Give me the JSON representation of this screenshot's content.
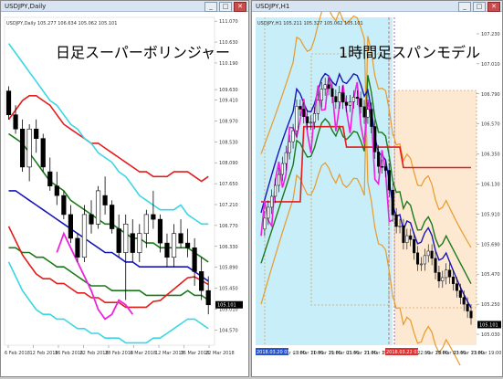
{
  "left_window": {
    "title": "USDJPY,Daily",
    "ohlc_text": "USDJPY,Daily 105.277 106.634 105.062 105.101",
    "caption": "日足スーパーボリンジャー"
  },
  "right_window": {
    "title": "USDJPY,H1",
    "ohlc_text": "USDJPY,H1 105.211 105.327 105.062 105.101",
    "caption": "1時間足スパンモデル"
  },
  "window_buttons": {
    "minimize": "_",
    "maximize": "□",
    "close": "✕"
  },
  "colors": {
    "up": "#ffffff",
    "down": "#000000",
    "price_tag": "#000000",
    "red_tag": "#e03030"
  },
  "chart_data": [
    {
      "type": "candlestick",
      "title": "日足スーパーボリンジャー",
      "ylim": [
        104.25,
        111.15
      ],
      "y_ticks": [
        "111.070",
        "110.630",
        "110.190",
        "109.630",
        "109.410",
        "108.970",
        "108.530",
        "108.090",
        "107.650",
        "107.210",
        "106.770",
        "106.330",
        "105.890",
        "105.450",
        "105.010",
        "104.570"
      ],
      "price_tag": "105.101",
      "x_tick_labels": [
        "6 Feb 2018",
        "12 Feb 2018",
        "16 Feb 2018",
        "22 Feb 2018",
        "28 Feb 2018",
        "6 Mar 2018",
        "12 Mar 2018",
        "16 Mar 2018",
        "22 Mar 2018"
      ],
      "candles": [
        [
          109.6,
          109.7,
          109.0,
          109.1
        ],
        [
          109.1,
          109.3,
          108.7,
          108.8
        ],
        [
          108.8,
          109.0,
          107.9,
          108.0
        ],
        [
          108.0,
          108.9,
          107.7,
          108.8
        ],
        [
          108.8,
          109.0,
          108.3,
          108.6
        ],
        [
          108.6,
          108.7,
          107.9,
          108.0
        ],
        [
          107.9,
          108.2,
          107.5,
          107.6
        ],
        [
          107.6,
          107.9,
          107.2,
          107.4
        ],
        [
          107.4,
          107.5,
          106.9,
          107.0
        ],
        [
          107.0,
          107.2,
          106.4,
          106.5
        ],
        [
          106.5,
          106.6,
          106.0,
          106.1
        ],
        [
          106.1,
          107.2,
          106.0,
          107.0
        ],
        [
          107.0,
          107.3,
          106.6,
          106.8
        ],
        [
          106.8,
          107.6,
          106.7,
          107.5
        ],
        [
          107.4,
          107.8,
          107.0,
          107.2
        ],
        [
          107.2,
          107.3,
          106.6,
          106.7
        ],
        [
          106.7,
          107.0,
          106.1,
          106.2
        ],
        [
          106.2,
          107.0,
          105.2,
          106.8
        ],
        [
          106.6,
          106.9,
          106.0,
          106.2
        ],
        [
          106.2,
          106.8,
          106.0,
          106.6
        ],
        [
          106.6,
          107.1,
          106.3,
          107.0
        ],
        [
          107.0,
          107.5,
          106.7,
          106.9
        ],
        [
          106.9,
          107.0,
          106.2,
          106.4
        ],
        [
          106.4,
          106.6,
          105.9,
          106.1
        ],
        [
          106.1,
          106.8,
          105.9,
          106.6
        ],
        [
          106.6,
          106.9,
          106.3,
          106.4
        ],
        [
          106.4,
          106.7,
          106.1,
          106.3
        ],
        [
          106.3,
          106.5,
          105.5,
          105.8
        ],
        [
          105.8,
          106.1,
          105.2,
          105.4
        ],
        [
          105.4,
          105.7,
          104.9,
          105.1
        ]
      ],
      "bands": {
        "sigma3_upper": [
          109.0,
          109.2,
          109.4,
          109.5,
          109.5,
          109.4,
          109.3,
          109.1,
          108.9,
          108.8,
          108.7,
          108.6,
          108.5,
          108.5,
          108.4,
          108.3,
          108.2,
          108.1,
          108.0,
          107.9,
          107.9,
          107.8,
          107.8,
          107.8,
          107.9,
          107.9,
          107.9,
          107.8,
          107.7,
          107.8
        ],
        "sigma2_upper": [
          110.6,
          110.4,
          110.2,
          110.0,
          109.8,
          109.6,
          109.4,
          109.3,
          109.1,
          108.9,
          108.8,
          108.6,
          108.5,
          108.3,
          108.2,
          108.1,
          107.9,
          107.8,
          107.6,
          107.4,
          107.3,
          107.2,
          107.1,
          107.1,
          107.1,
          107.2,
          107.0,
          106.9,
          106.8,
          106.8
        ],
        "sigma1_upper": [
          108.7,
          108.6,
          108.5,
          108.3,
          108.1,
          107.9,
          107.7,
          107.6,
          107.5,
          107.3,
          107.2,
          107.1,
          107.0,
          106.9,
          106.8,
          106.8,
          106.7,
          106.6,
          106.5,
          106.5,
          106.4,
          106.4,
          106.3,
          106.3,
          106.3,
          106.3,
          106.3,
          106.2,
          106.1,
          106.0
        ],
        "mid": [
          107.5,
          107.5,
          107.4,
          107.3,
          107.2,
          107.1,
          107.0,
          106.9,
          106.8,
          106.7,
          106.6,
          106.5,
          106.4,
          106.3,
          106.2,
          106.2,
          106.1,
          106.0,
          106.0,
          105.9,
          105.9,
          105.9,
          105.9,
          105.9,
          105.9,
          105.9,
          105.9,
          105.8,
          105.7,
          105.6
        ],
        "sigma1_lower": [
          106.3,
          106.3,
          106.2,
          106.2,
          106.1,
          106.1,
          106.0,
          105.9,
          105.9,
          105.8,
          105.7,
          105.6,
          105.5,
          105.5,
          105.5,
          105.4,
          105.4,
          105.4,
          105.4,
          105.4,
          105.3,
          105.3,
          105.3,
          105.3,
          105.3,
          105.3,
          105.4,
          105.3,
          105.3,
          105.2
        ],
        "sigma2_lower": [
          106.0,
          105.7,
          105.4,
          105.2,
          105.0,
          104.9,
          104.9,
          104.8,
          104.8,
          104.7,
          104.6,
          104.6,
          104.5,
          104.5,
          104.4,
          104.4,
          104.4,
          104.3,
          104.3,
          104.3,
          104.3,
          104.4,
          104.4,
          104.5,
          104.6,
          104.7,
          104.8,
          104.8,
          104.7,
          104.6
        ],
        "lagging": [
          null,
          null,
          null,
          null,
          null,
          null,
          null,
          106.2,
          106.6,
          106.3,
          106.0,
          105.7,
          105.4,
          105.0,
          104.8,
          104.9,
          105.2,
          105.1,
          104.9
        ]
      }
    },
    {
      "type": "candlestick",
      "title": "1時間足スパンモデル",
      "ylim": [
        104.95,
        107.35
      ],
      "y_ticks": [
        "107.230",
        "107.010",
        "106.790",
        "106.570",
        "106.350",
        "106.130",
        "105.910",
        "105.690",
        "105.470",
        "105.250",
        "105.030"
      ],
      "y_tags": [
        "105.101"
      ],
      "x_tick_labels": [
        "15 Mar 2018",
        "19 Mar 07:00",
        "20 Mar 11:00",
        "20 Mar 19:00",
        "21 Mar 03:00",
        "21 Mar 11:00",
        "21 Mar 19:00",
        "22 Mar 03:00",
        "22 Mar 11:00",
        "22 Mar 19:00",
        "23 Mar 03:00",
        "23 Mar 11:00",
        "23 Mar 19:00"
      ],
      "tag_times": [
        "2018.03.20 03:00",
        "2018.03.22 03:00"
      ]
    }
  ]
}
